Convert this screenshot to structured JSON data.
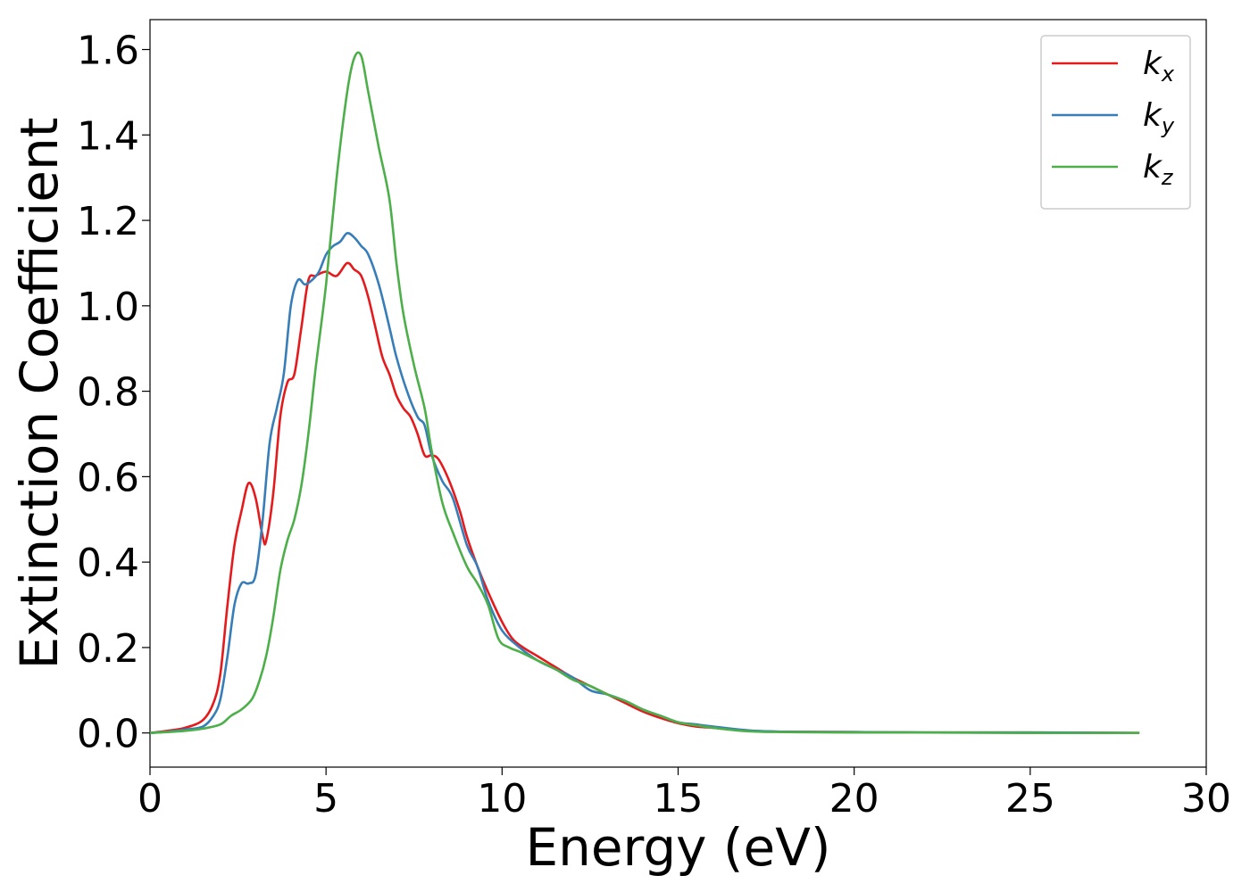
{
  "chart_data": {
    "type": "line",
    "xlabel": "Energy (eV)",
    "ylabel": "Extinction Coefficient",
    "xlim": [
      0,
      30
    ],
    "ylim": [
      -0.08,
      1.67
    ],
    "xticks": [
      0,
      5,
      10,
      15,
      20,
      25,
      30
    ],
    "xtick_labels": [
      "0",
      "5",
      "10",
      "15",
      "20",
      "25",
      "30"
    ],
    "yticks": [
      0.0,
      0.2,
      0.4,
      0.6,
      0.8,
      1.0,
      1.2,
      1.4,
      1.6
    ],
    "ytick_labels": [
      "0.0",
      "0.2",
      "0.4",
      "0.6",
      "0.8",
      "1.0",
      "1.2",
      "1.4",
      "1.6"
    ],
    "grid": false,
    "legend": {
      "position": "top-right"
    },
    "series": [
      {
        "name": "k_x",
        "label_base": "k",
        "label_sub": "x",
        "color": "#e41a1c",
        "x": [
          0,
          0.5,
          1.0,
          1.5,
          1.8,
          2.0,
          2.2,
          2.4,
          2.6,
          2.8,
          3.0,
          3.2,
          3.3,
          3.5,
          3.7,
          3.9,
          4.1,
          4.3,
          4.5,
          4.7,
          5.0,
          5.3,
          5.6,
          5.8,
          6.0,
          6.2,
          6.4,
          6.6,
          6.8,
          7.0,
          7.2,
          7.4,
          7.6,
          7.8,
          8.0,
          8.2,
          8.5,
          8.8,
          9.0,
          9.3,
          9.6,
          10.0,
          10.3,
          10.6,
          11.0,
          11.5,
          12.0,
          12.5,
          13.0,
          13.5,
          14.0,
          14.5,
          15.0,
          15.5,
          16.0,
          17.0,
          18.0,
          20.0,
          22.0,
          25.0,
          28.1
        ],
        "y": [
          0.0,
          0.005,
          0.012,
          0.03,
          0.07,
          0.14,
          0.3,
          0.44,
          0.52,
          0.585,
          0.55,
          0.46,
          0.45,
          0.56,
          0.74,
          0.82,
          0.84,
          0.95,
          1.06,
          1.07,
          1.08,
          1.07,
          1.1,
          1.085,
          1.07,
          1.02,
          0.95,
          0.88,
          0.84,
          0.79,
          0.76,
          0.74,
          0.7,
          0.65,
          0.65,
          0.64,
          0.59,
          0.52,
          0.46,
          0.39,
          0.33,
          0.26,
          0.22,
          0.2,
          0.18,
          0.155,
          0.13,
          0.11,
          0.09,
          0.07,
          0.05,
          0.035,
          0.023,
          0.015,
          0.012,
          0.005,
          0.003,
          0.002,
          0.001,
          0.001,
          0.0
        ]
      },
      {
        "name": "k_y",
        "label_base": "k",
        "label_sub": "y",
        "color": "#377eb8",
        "x": [
          0,
          0.5,
          1.0,
          1.5,
          1.8,
          2.0,
          2.2,
          2.4,
          2.6,
          2.8,
          3.0,
          3.2,
          3.4,
          3.6,
          3.8,
          4.0,
          4.2,
          4.4,
          4.6,
          4.8,
          5.0,
          5.2,
          5.4,
          5.6,
          5.8,
          6.0,
          6.2,
          6.5,
          6.8,
          7.0,
          7.3,
          7.6,
          7.8,
          8.0,
          8.3,
          8.6,
          9.0,
          9.3,
          9.6,
          10.0,
          10.5,
          11.0,
          11.5,
          12.0,
          12.5,
          13.0,
          13.5,
          14.0,
          14.5,
          15.0,
          15.5,
          16.0,
          17.0,
          18.0,
          20.0,
          22.0,
          25.0,
          28.1
        ],
        "y": [
          0.0,
          0.003,
          0.008,
          0.015,
          0.04,
          0.08,
          0.18,
          0.3,
          0.35,
          0.35,
          0.37,
          0.5,
          0.68,
          0.76,
          0.84,
          1.0,
          1.06,
          1.05,
          1.06,
          1.08,
          1.12,
          1.14,
          1.15,
          1.17,
          1.16,
          1.14,
          1.12,
          1.05,
          0.95,
          0.88,
          0.8,
          0.74,
          0.72,
          0.65,
          0.59,
          0.55,
          0.44,
          0.39,
          0.31,
          0.24,
          0.2,
          0.17,
          0.15,
          0.13,
          0.1,
          0.09,
          0.075,
          0.055,
          0.04,
          0.025,
          0.02,
          0.015,
          0.006,
          0.003,
          0.002,
          0.001,
          0.001,
          0.0
        ]
      },
      {
        "name": "k_z",
        "label_base": "k",
        "label_sub": "z",
        "color": "#4daf4a",
        "x": [
          0,
          0.5,
          1.0,
          1.5,
          2.0,
          2.3,
          2.6,
          2.9,
          3.1,
          3.3,
          3.5,
          3.7,
          3.9,
          4.1,
          4.3,
          4.5,
          4.7,
          5.0,
          5.3,
          5.6,
          5.8,
          6.0,
          6.2,
          6.5,
          6.8,
          7.0,
          7.2,
          7.5,
          7.8,
          8.0,
          8.3,
          8.6,
          9.0,
          9.3,
          9.6,
          9.9,
          10.2,
          10.5,
          11.0,
          11.5,
          12.0,
          12.5,
          13.0,
          13.5,
          14.0,
          14.5,
          15.0,
          15.5,
          16.0,
          17.0,
          18.0,
          20.0,
          22.0,
          25.0,
          28.1
        ],
        "y": [
          0.0,
          0.002,
          0.005,
          0.01,
          0.02,
          0.04,
          0.055,
          0.08,
          0.12,
          0.18,
          0.27,
          0.38,
          0.45,
          0.5,
          0.58,
          0.7,
          0.85,
          1.05,
          1.3,
          1.5,
          1.58,
          1.585,
          1.5,
          1.37,
          1.25,
          1.1,
          0.98,
          0.86,
          0.76,
          0.66,
          0.54,
          0.47,
          0.39,
          0.35,
          0.3,
          0.22,
          0.2,
          0.19,
          0.17,
          0.15,
          0.125,
          0.11,
          0.09,
          0.075,
          0.055,
          0.04,
          0.025,
          0.018,
          0.012,
          0.004,
          0.002,
          0.001,
          0.001,
          0.0,
          0.0
        ]
      }
    ]
  }
}
